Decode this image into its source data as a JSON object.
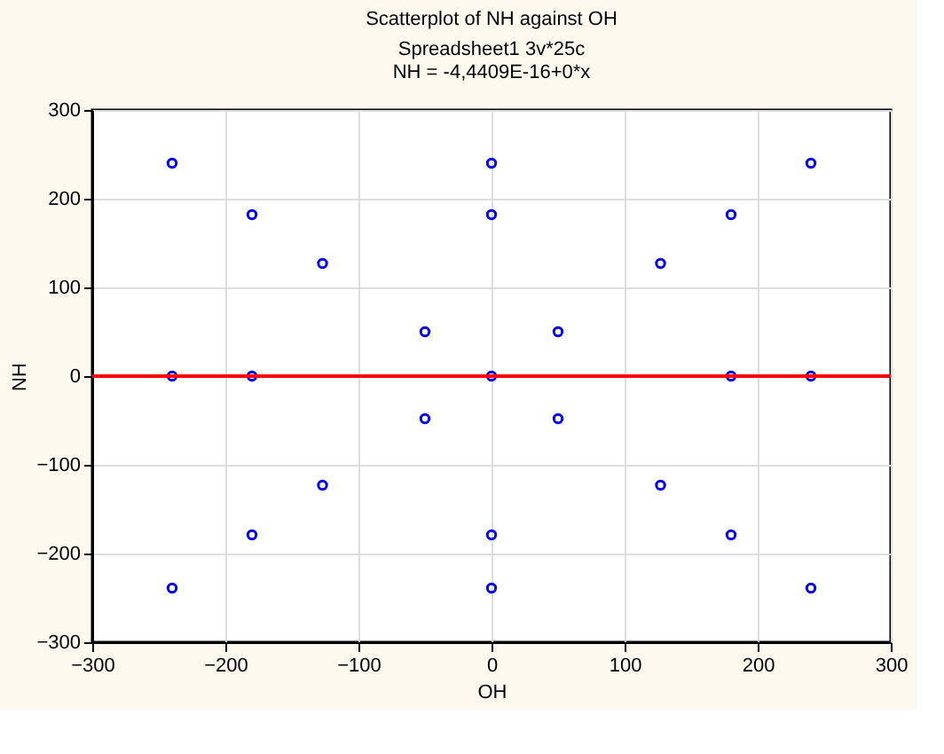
{
  "chart_data": {
    "type": "scatter",
    "title": "Scatterplot of NH against OH",
    "subtitle": "Spreadsheet1 3v*25c",
    "annotations": [
      "NH = -4,4409E-16+0*x"
    ],
    "xlabel": "OH",
    "ylabel": "NH",
    "xlim": [
      -300,
      300
    ],
    "xticks": [
      -300,
      -200,
      -100,
      0,
      100,
      200,
      300
    ],
    "ylim": [
      -300,
      300
    ],
    "yticks": [
      -300,
      -200,
      -100,
      0,
      100,
      200,
      300
    ],
    "grid": true,
    "series": [
      {
        "color": "#0000ff",
        "marker": "circle",
        "x": [
          -240,
          0,
          240,
          -180,
          0,
          180,
          -127,
          127,
          -50,
          50,
          -240,
          -180,
          0,
          180,
          240,
          -50,
          50,
          -127,
          127,
          -180,
          0,
          180,
          -240,
          0,
          240
        ],
        "values": [
          240,
          240,
          240,
          182,
          182,
          182,
          127,
          127,
          50,
          50,
          0,
          0,
          0,
          0,
          0,
          -48,
          -48,
          -123,
          -123,
          -179,
          -179,
          -179,
          -239,
          -239,
          -239
        ]
      },
      {
        "type": "line",
        "color": "#ff0000",
        "line_style": "solid",
        "marker": "none",
        "x": [
          -300,
          300
        ],
        "values": [
          0,
          0
        ]
      }
    ]
  }
}
